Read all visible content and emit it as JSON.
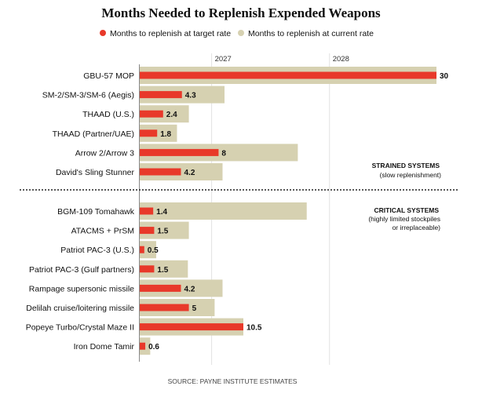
{
  "chart_data": {
    "type": "bar",
    "orientation": "horizontal",
    "title": "Months Needed to Replenish Expended Weapons",
    "legend": [
      {
        "name": "Months to replenish at target rate",
        "color": "#e8392a"
      },
      {
        "name": "Months to replenish at current rate",
        "color": "#d6d1b1"
      }
    ],
    "legend_placement": "top",
    "xlim": [
      0,
      30
    ],
    "reference_lines": [
      {
        "label": "2027",
        "value": 7.3
      },
      {
        "label": "2028",
        "value": 19.2
      }
    ],
    "groups": [
      {
        "label": "STRAINED SYSTEMS",
        "sublabel": "(slow replenishment)",
        "categories": [
          "GBU-57 MOP",
          "SM-2/SM-3/SM-6 (Aegis)",
          "THAAD (U.S.)",
          "THAAD (Partner/UAE)",
          "Arrow 2/Arrow 3",
          "David's Sling Stunner"
        ],
        "target_rate": [
          30,
          4.3,
          2.4,
          1.8,
          8,
          4.2
        ],
        "current_rate": [
          30,
          8.6,
          5.0,
          3.8,
          16.0,
          8.4
        ]
      },
      {
        "label": "CRITICAL SYSTEMS",
        "sublabel": "(highly limited stockpiles",
        "sublabel2": "or irreplaceable)",
        "categories": [
          "BGM-109 Tomahawk",
          "ATACMS + PrSM",
          "Patriot PAC-3 (U.S.)",
          "Patriot PAC-3 (Gulf partners)",
          "Rampage supersonic missile",
          "Delilah cruise/loitering missile",
          "Popeye Turbo/Crystal Maze II",
          "Iron Dome Tamir"
        ],
        "target_rate": [
          1.4,
          1.5,
          0.5,
          1.5,
          4.2,
          5,
          10.5,
          0.6
        ],
        "current_rate": [
          16.9,
          5.0,
          1.7,
          4.9,
          8.4,
          7.6,
          10.5,
          1.1
        ]
      }
    ],
    "source": "SOURCE: PAYNE INSTITUTE ESTIMATES"
  }
}
